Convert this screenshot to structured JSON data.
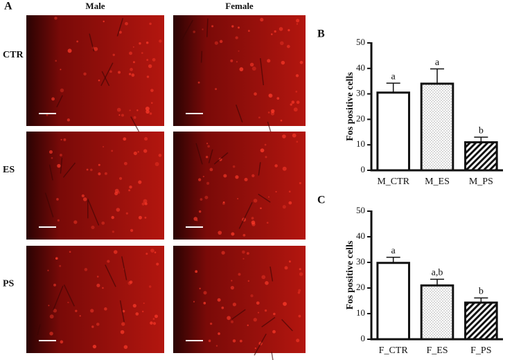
{
  "panel_a": {
    "label": "A",
    "columns": [
      "Male",
      "Female"
    ],
    "rows": [
      "CTR",
      "ES",
      "PS"
    ]
  },
  "chart_data": [
    {
      "type": "bar",
      "panel_label": "B",
      "y_label": "Fos positive cells",
      "categories": [
        "M_CTR",
        "M_ES",
        "M_PS"
      ],
      "values": [
        30.5,
        34,
        11
      ],
      "errors": [
        3.7,
        5.8,
        2
      ],
      "annotations": [
        "a",
        "a",
        "b"
      ],
      "fills": [
        "plain",
        "dots",
        "hatch"
      ],
      "ylim": [
        0,
        50
      ],
      "yticks": [
        0,
        10,
        20,
        30,
        40,
        50
      ]
    },
    {
      "type": "bar",
      "panel_label": "C",
      "y_label": "Fos positive cells",
      "categories": [
        "F_CTR",
        "F_ES",
        "F_PS"
      ],
      "values": [
        29.8,
        21,
        14.3
      ],
      "errors": [
        2.2,
        2.4,
        1.8
      ],
      "annotations": [
        "a",
        "a,b",
        "b"
      ],
      "fills": [
        "plain",
        "dots",
        "hatch"
      ],
      "ylim": [
        0,
        50
      ],
      "yticks": [
        0,
        10,
        20,
        30,
        40,
        50
      ]
    }
  ]
}
